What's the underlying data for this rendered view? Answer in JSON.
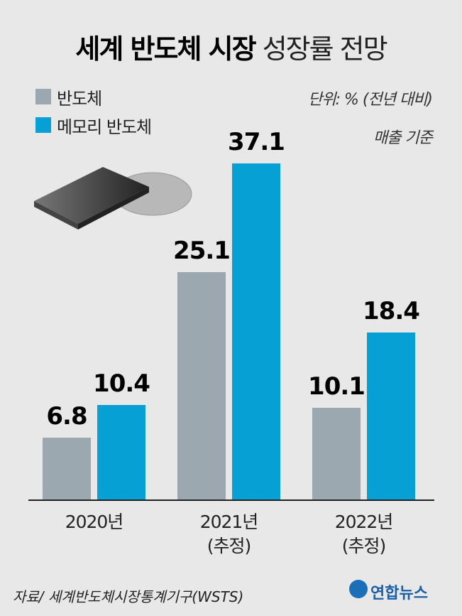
{
  "chart_data": {
    "type": "bar",
    "title": "세계 반도체 시장",
    "subtitle": "성장률 전망",
    "unit_note": "단위: % (전년 대비)",
    "basis_note": "매출 기준",
    "categories": [
      "2020년",
      "2021년\n(추정)",
      "2022년\n(추정)"
    ],
    "series": [
      {
        "name": "반도체",
        "color": "#9ca8b0",
        "values": [
          6.8,
          25.1,
          10.1
        ]
      },
      {
        "name": "메모리 반도체",
        "color": "#06a0d4",
        "values": [
          10.4,
          37.1,
          18.4
        ]
      }
    ],
    "source": "자료/ 세계반도체시장통계기구(WSTS)",
    "logo": "연합뉴스"
  }
}
